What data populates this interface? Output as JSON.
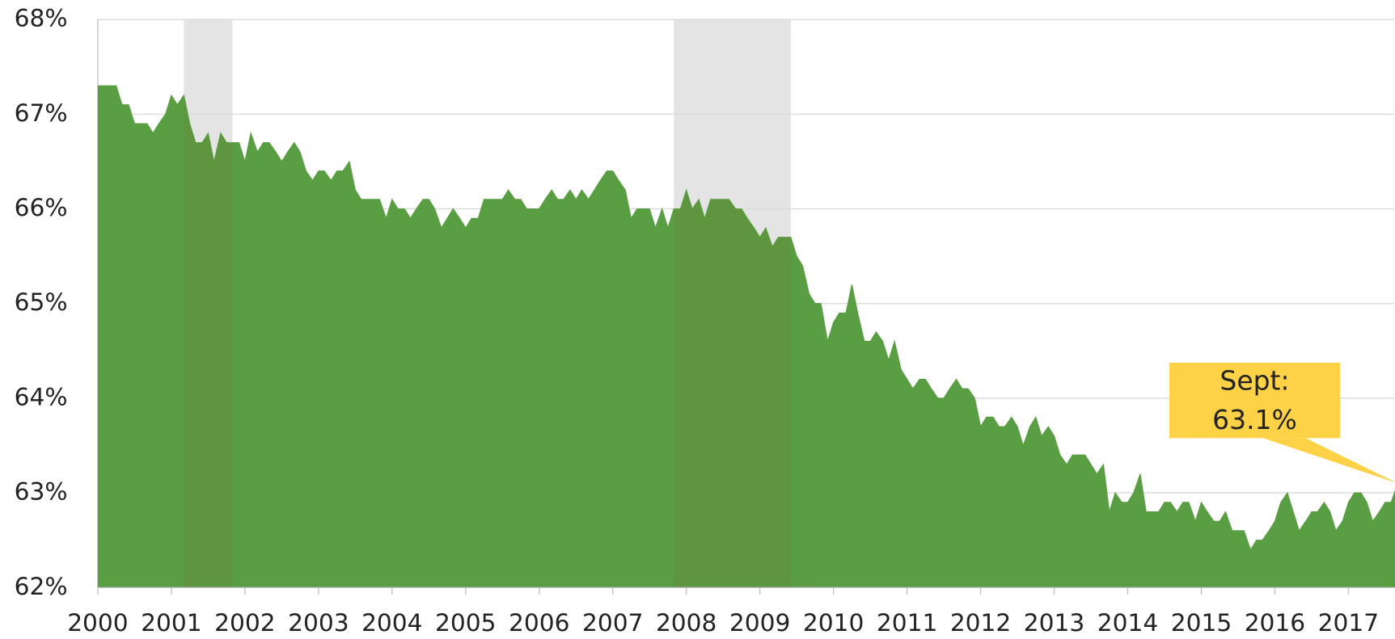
{
  "chart_data": {
    "type": "area",
    "x": [
      2000,
      2000.08,
      2000.17,
      2000.25,
      2000.33,
      2000.42,
      2000.5,
      2000.58,
      2000.67,
      2000.75,
      2000.83,
      2000.92,
      2001,
      2001.08,
      2001.17,
      2001.25,
      2001.33,
      2001.42,
      2001.5,
      2001.58,
      2001.67,
      2001.75,
      2001.83,
      2001.92,
      2002,
      2002.08,
      2002.17,
      2002.25,
      2002.33,
      2002.42,
      2002.5,
      2002.58,
      2002.67,
      2002.75,
      2002.83,
      2002.92,
      2003,
      2003.08,
      2003.17,
      2003.25,
      2003.33,
      2003.42,
      2003.5,
      2003.58,
      2003.67,
      2003.75,
      2003.83,
      2003.92,
      2004,
      2004.08,
      2004.17,
      2004.25,
      2004.33,
      2004.42,
      2004.5,
      2004.58,
      2004.67,
      2004.75,
      2004.83,
      2004.92,
      2005,
      2005.08,
      2005.17,
      2005.25,
      2005.33,
      2005.42,
      2005.5,
      2005.58,
      2005.67,
      2005.75,
      2005.83,
      2005.92,
      2006,
      2006.08,
      2006.17,
      2006.25,
      2006.33,
      2006.42,
      2006.5,
      2006.58,
      2006.67,
      2006.75,
      2006.83,
      2006.92,
      2007,
      2007.08,
      2007.17,
      2007.25,
      2007.33,
      2007.42,
      2007.5,
      2007.58,
      2007.67,
      2007.75,
      2007.83,
      2007.92,
      2008,
      2008.08,
      2008.17,
      2008.25,
      2008.33,
      2008.42,
      2008.5,
      2008.58,
      2008.67,
      2008.75,
      2008.83,
      2008.92,
      2009,
      2009.08,
      2009.17,
      2009.25,
      2009.33,
      2009.42,
      2009.5,
      2009.58,
      2009.67,
      2009.75,
      2009.83,
      2009.92,
      2010,
      2010.08,
      2010.17,
      2010.25,
      2010.33,
      2010.42,
      2010.5,
      2010.58,
      2010.67,
      2010.75,
      2010.83,
      2010.92,
      2011,
      2011.08,
      2011.17,
      2011.25,
      2011.33,
      2011.42,
      2011.5,
      2011.58,
      2011.67,
      2011.75,
      2011.83,
      2011.92,
      2012,
      2012.08,
      2012.17,
      2012.25,
      2012.33,
      2012.42,
      2012.5,
      2012.58,
      2012.67,
      2012.75,
      2012.83,
      2012.92,
      2013,
      2013.08,
      2013.17,
      2013.25,
      2013.33,
      2013.42,
      2013.5,
      2013.58,
      2013.67,
      2013.75,
      2013.83,
      2013.92,
      2014,
      2014.08,
      2014.17,
      2014.25,
      2014.33,
      2014.42,
      2014.5,
      2014.58,
      2014.67,
      2014.75,
      2014.83,
      2014.92,
      2015,
      2015.08,
      2015.17,
      2015.25,
      2015.33,
      2015.42,
      2015.5,
      2015.58,
      2015.67,
      2015.75,
      2015.83,
      2015.92,
      2016,
      2016.08,
      2016.17,
      2016.25,
      2016.33,
      2016.42,
      2016.5,
      2016.58,
      2016.67,
      2016.75,
      2016.83,
      2016.92,
      2017,
      2017.08,
      2017.17,
      2017.25,
      2017.33,
      2017.42,
      2017.5,
      2017.58,
      2017.67
    ],
    "values": [
      67.3,
      67.3,
      67.3,
      67.3,
      67.1,
      67.1,
      66.9,
      66.9,
      66.9,
      66.8,
      66.9,
      67.0,
      67.2,
      67.1,
      67.2,
      66.9,
      66.7,
      66.7,
      66.8,
      66.5,
      66.8,
      66.7,
      66.7,
      66.7,
      66.5,
      66.8,
      66.6,
      66.7,
      66.7,
      66.6,
      66.5,
      66.6,
      66.7,
      66.6,
      66.4,
      66.3,
      66.4,
      66.4,
      66.3,
      66.4,
      66.4,
      66.5,
      66.2,
      66.1,
      66.1,
      66.1,
      66.1,
      65.9,
      66.1,
      66.0,
      66.0,
      65.9,
      66.0,
      66.1,
      66.1,
      66.0,
      65.8,
      65.9,
      66.0,
      65.9,
      65.8,
      65.9,
      65.9,
      66.1,
      66.1,
      66.1,
      66.1,
      66.2,
      66.1,
      66.1,
      66.0,
      66.0,
      66.0,
      66.1,
      66.2,
      66.1,
      66.1,
      66.2,
      66.1,
      66.2,
      66.1,
      66.2,
      66.3,
      66.4,
      66.4,
      66.3,
      66.2,
      65.9,
      66.0,
      66.0,
      66.0,
      65.8,
      66.0,
      65.8,
      66.0,
      66.0,
      66.2,
      66.0,
      66.1,
      65.9,
      66.1,
      66.1,
      66.1,
      66.1,
      66.0,
      66.0,
      65.9,
      65.8,
      65.7,
      65.8,
      65.6,
      65.7,
      65.7,
      65.7,
      65.5,
      65.4,
      65.1,
      65.0,
      65.0,
      64.6,
      64.8,
      64.9,
      64.9,
      65.2,
      64.9,
      64.6,
      64.6,
      64.7,
      64.6,
      64.4,
      64.6,
      64.3,
      64.2,
      64.1,
      64.2,
      64.2,
      64.1,
      64.0,
      64.0,
      64.1,
      64.2,
      64.1,
      64.1,
      64.0,
      63.7,
      63.8,
      63.8,
      63.7,
      63.7,
      63.8,
      63.7,
      63.5,
      63.7,
      63.8,
      63.6,
      63.7,
      63.6,
      63.4,
      63.3,
      63.4,
      63.4,
      63.4,
      63.3,
      63.2,
      63.3,
      62.8,
      63.0,
      62.9,
      62.9,
      63.0,
      63.2,
      62.8,
      62.8,
      62.8,
      62.9,
      62.9,
      62.8,
      62.9,
      62.9,
      62.7,
      62.9,
      62.8,
      62.7,
      62.7,
      62.8,
      62.6,
      62.6,
      62.6,
      62.4,
      62.5,
      62.5,
      62.6,
      62.7,
      62.9,
      63.0,
      62.8,
      62.6,
      62.7,
      62.8,
      62.8,
      62.9,
      62.8,
      62.6,
      62.7,
      62.9,
      63.0,
      63.0,
      62.9,
      62.7,
      62.8,
      62.9,
      62.9,
      63.1
    ],
    "color": "#5a9e44",
    "recessions": [
      [
        2001.17,
        2001.83
      ],
      [
        2007.83,
        2009.42
      ]
    ],
    "recession_color": "#e4e4e4",
    "xlim": [
      2000,
      2017.62
    ],
    "xticks": [
      2000,
      2001,
      2002,
      2003,
      2004,
      2005,
      2006,
      2007,
      2008,
      2009,
      2010,
      2011,
      2012,
      2013,
      2014,
      2015,
      2016,
      2017
    ],
    "ylim": [
      62,
      68
    ],
    "yticks": [
      {
        "value": 62,
        "label": "62%"
      },
      {
        "value": 63,
        "label": "63%"
      },
      {
        "value": 64,
        "label": "64%"
      },
      {
        "value": 65,
        "label": "65%"
      },
      {
        "value": 66,
        "label": "66%"
      },
      {
        "value": 67,
        "label": "67%"
      },
      {
        "value": 68,
        "label": "68%"
      }
    ],
    "grid": true,
    "annotation": {
      "lines": [
        "Sept:",
        "63.1%"
      ],
      "color": "#fdd247"
    }
  }
}
